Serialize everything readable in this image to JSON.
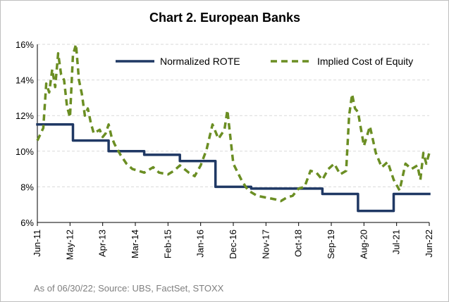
{
  "chart_data": {
    "type": "line",
    "title": "Chart 2. European Banks",
    "xlabel": "",
    "ylabel": "",
    "ylim": [
      6,
      16
    ],
    "yticks": [
      "6%",
      "8%",
      "10%",
      "12%",
      "14%",
      "16%"
    ],
    "xlim": [
      "2011-06",
      "2022-06"
    ],
    "xticks": [
      {
        "date": "2011-06",
        "label": "Jun-11"
      },
      {
        "date": "2012-05",
        "label": "May-12"
      },
      {
        "date": "2013-04",
        "label": "Apr-13"
      },
      {
        "date": "2014-03",
        "label": "Mar-14"
      },
      {
        "date": "2015-02",
        "label": "Feb-15"
      },
      {
        "date": "2016-01",
        "label": "Jan-16"
      },
      {
        "date": "2016-12",
        "label": "Dec-16"
      },
      {
        "date": "2017-11",
        "label": "Nov-17"
      },
      {
        "date": "2018-10",
        "label": "Oct-18"
      },
      {
        "date": "2019-09",
        "label": "Sep-19"
      },
      {
        "date": "2020-08",
        "label": "Aug-20"
      },
      {
        "date": "2021-07",
        "label": "Jul-21"
      },
      {
        "date": "2022-06",
        "label": "Jun-22"
      }
    ],
    "grid": "horizontal",
    "legend_position": "top-right",
    "series": [
      {
        "name": "Normalized ROTE",
        "style": "step",
        "color": "#1f3864",
        "points": [
          [
            "2011-06",
            11.5
          ],
          [
            "2012-06",
            11.5
          ],
          [
            "2012-06",
            10.6
          ],
          [
            "2013-06",
            10.6
          ],
          [
            "2013-06",
            10.0
          ],
          [
            "2014-06",
            10.0
          ],
          [
            "2014-06",
            9.8
          ],
          [
            "2015-06",
            9.8
          ],
          [
            "2015-06",
            9.45
          ],
          [
            "2016-06",
            9.45
          ],
          [
            "2016-06",
            8.0
          ],
          [
            "2017-06",
            8.0
          ],
          [
            "2017-06",
            7.9
          ],
          [
            "2019-06",
            7.9
          ],
          [
            "2019-06",
            7.6
          ],
          [
            "2020-06",
            7.6
          ],
          [
            "2020-06",
            6.65
          ],
          [
            "2021-06",
            6.65
          ],
          [
            "2021-06",
            7.6
          ],
          [
            "2022-06",
            7.6
          ]
        ]
      },
      {
        "name": "Implied Cost of Equity",
        "style": "dashed",
        "color": "#6b8e23",
        "points": [
          [
            "2011-06",
            10.6
          ],
          [
            "2011-08",
            11.3
          ],
          [
            "2011-09",
            13.8
          ],
          [
            "2011-10",
            13.3
          ],
          [
            "2011-11",
            14.6
          ],
          [
            "2011-12",
            13.6
          ],
          [
            "2012-01",
            15.5
          ],
          [
            "2012-02",
            14.3
          ],
          [
            "2012-03",
            14.0
          ],
          [
            "2012-04",
            12.5
          ],
          [
            "2012-05",
            11.9
          ],
          [
            "2012-06",
            15.4
          ],
          [
            "2012-07",
            16.0
          ],
          [
            "2012-08",
            14.0
          ],
          [
            "2012-09",
            13.2
          ],
          [
            "2012-10",
            12.0
          ],
          [
            "2012-11",
            12.4
          ],
          [
            "2012-12",
            11.6
          ],
          [
            "2013-01",
            11.0
          ],
          [
            "2013-03",
            11.2
          ],
          [
            "2013-04",
            10.8
          ],
          [
            "2013-05",
            11.0
          ],
          [
            "2013-06",
            11.5
          ],
          [
            "2013-07",
            10.8
          ],
          [
            "2013-08",
            10.4
          ],
          [
            "2013-10",
            9.8
          ],
          [
            "2013-12",
            9.3
          ],
          [
            "2014-02",
            9.0
          ],
          [
            "2014-04",
            8.9
          ],
          [
            "2014-06",
            8.8
          ],
          [
            "2014-09",
            9.1
          ],
          [
            "2014-11",
            8.8
          ],
          [
            "2015-02",
            8.7
          ],
          [
            "2015-04",
            8.9
          ],
          [
            "2015-06",
            9.2
          ],
          [
            "2015-09",
            8.8
          ],
          [
            "2015-11",
            8.6
          ],
          [
            "2016-01",
            9.2
          ],
          [
            "2016-03",
            10.1
          ],
          [
            "2016-05",
            11.5
          ],
          [
            "2016-07",
            10.7
          ],
          [
            "2016-09",
            11.2
          ],
          [
            "2016-10",
            12.3
          ],
          [
            "2016-12",
            9.3
          ],
          [
            "2017-03",
            8.3
          ],
          [
            "2017-05",
            7.8
          ],
          [
            "2017-08",
            7.5
          ],
          [
            "2017-11",
            7.4
          ],
          [
            "2018-02",
            7.3
          ],
          [
            "2018-04",
            7.2
          ],
          [
            "2018-06",
            7.4
          ],
          [
            "2018-08",
            7.5
          ],
          [
            "2018-10",
            7.9
          ],
          [
            "2018-12",
            8.0
          ],
          [
            "2019-02",
            8.9
          ],
          [
            "2019-04",
            8.8
          ],
          [
            "2019-06",
            8.4
          ],
          [
            "2019-08",
            9.0
          ],
          [
            "2019-10",
            9.3
          ],
          [
            "2019-12",
            8.7
          ],
          [
            "2020-02",
            8.9
          ],
          [
            "2020-03",
            12.0
          ],
          [
            "2020-04",
            13.2
          ],
          [
            "2020-05",
            12.4
          ],
          [
            "2020-06",
            12.2
          ],
          [
            "2020-08",
            10.3
          ],
          [
            "2020-10",
            11.4
          ],
          [
            "2020-12",
            9.9
          ],
          [
            "2021-02",
            9.1
          ],
          [
            "2021-04",
            9.4
          ],
          [
            "2021-06",
            8.4
          ],
          [
            "2021-08",
            7.8
          ],
          [
            "2021-10",
            9.3
          ],
          [
            "2021-12",
            9.0
          ],
          [
            "2022-02",
            9.2
          ],
          [
            "2022-03",
            8.4
          ],
          [
            "2022-04",
            9.9
          ],
          [
            "2022-05",
            9.3
          ],
          [
            "2022-06",
            9.9
          ]
        ]
      }
    ]
  },
  "source_note": "As of 06/30/22; Source: UBS, FactSet, STOXX"
}
